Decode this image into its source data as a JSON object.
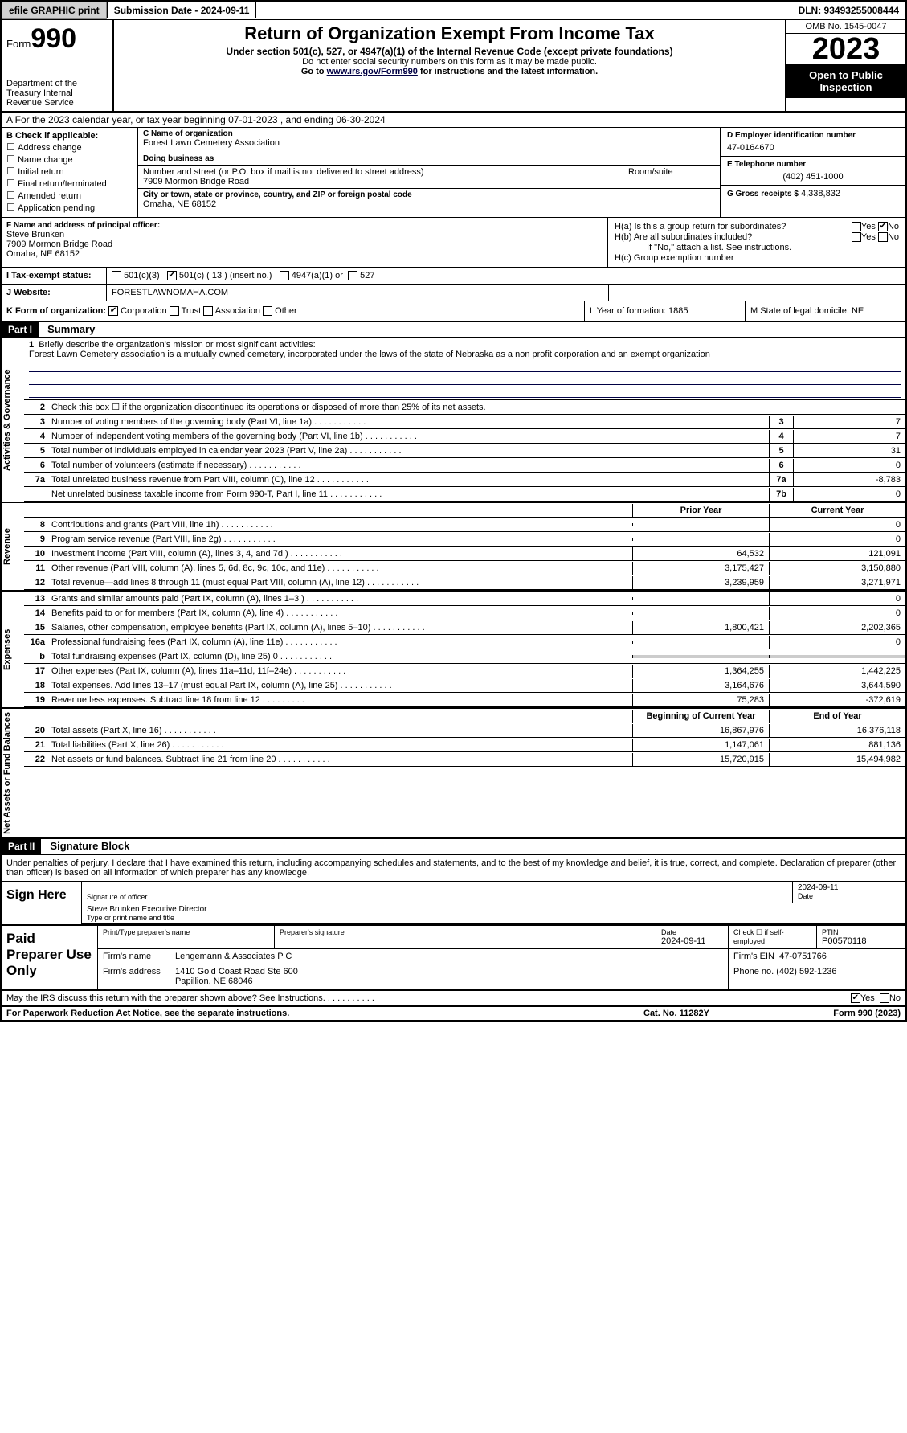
{
  "topbar": {
    "efile": "efile GRAPHIC print",
    "subdate": "Submission Date - 2024-09-11",
    "dln": "DLN: 93493255008444"
  },
  "header": {
    "form_label": "Form",
    "form_num": "990",
    "dept": "Department of the Treasury Internal Revenue Service",
    "title": "Return of Organization Exempt From Income Tax",
    "sub1": "Under section 501(c), 527, or 4947(a)(1) of the Internal Revenue Code (except private foundations)",
    "sub2": "Do not enter social security numbers on this form as it may be made public.",
    "sub3_pre": "Go to ",
    "sub3_link": "www.irs.gov/Form990",
    "sub3_post": " for instructions and the latest information.",
    "omb": "OMB No. 1545-0047",
    "year": "2023",
    "openpub": "Open to Public Inspection"
  },
  "period": {
    "line": "A For the 2023 calendar year, or tax year beginning 07-01-2023   , and ending 06-30-2024"
  },
  "colB": {
    "cap": "B Check if applicable:",
    "opts": [
      "Address change",
      "Name change",
      "Initial return",
      "Final return/terminated",
      "Amended return",
      "Application pending"
    ]
  },
  "colC": {
    "name_cap": "C Name of organization",
    "name": "Forest Lawn Cemetery Association",
    "dba_cap": "Doing business as",
    "dba": "",
    "addr_cap": "Number and street (or P.O. box if mail is not delivered to street address)",
    "addr": "7909 Mormon Bridge Road",
    "suite_cap": "Room/suite",
    "city_cap": "City or town, state or province, country, and ZIP or foreign postal code",
    "city": "Omaha, NE  68152"
  },
  "colD": {
    "ein_cap": "D Employer identification number",
    "ein": "47-0164670",
    "tel_cap": "E Telephone number",
    "tel": "(402) 451-1000",
    "gross_cap": "G Gross receipts $",
    "gross": "4,338,832"
  },
  "officer": {
    "cap": "F  Name and address of principal officer:",
    "name": "Steve Brunken",
    "addr1": "7909 Mormon Bridge Road",
    "addr2": "Omaha, NE  68152",
    "ha": "H(a)  Is this a group return for subordinates?",
    "hb": "H(b)  Are all subordinates included?",
    "hb_note": "If \"No,\" attach a list. See instructions.",
    "hc": "H(c)  Group exemption number"
  },
  "status": {
    "i_lab": "I  Tax-exempt status:",
    "c3": "501(c)(3)",
    "c": "501(c) ( 13 ) (insert no.)",
    "a1": "4947(a)(1) or",
    "s527": "527",
    "j_lab": "J  Website:",
    "website": "FORESTLAWNOMAHA.COM"
  },
  "korg": {
    "k": "K Form of organization:",
    "opts": [
      "Corporation",
      "Trust",
      "Association",
      "Other"
    ],
    "l": "L Year of formation: 1885",
    "m": "M State of legal domicile: NE"
  },
  "part1": {
    "hdr": "Part I",
    "title": "Summary",
    "q1": "Briefly describe the organization's mission or most significant activities:",
    "mission": "Forest Lawn Cemetery association is a mutually owned cemetery, incorporated under the laws of the state of Nebraska as a non profit corporation and an exempt organization",
    "q2": "Check this box ☐  if the organization discontinued its operations or disposed of more than 25% of its net assets."
  },
  "gov_lines": [
    {
      "n": "3",
      "t": "Number of voting members of the governing body (Part VI, line 1a)",
      "b": "3",
      "v": "7"
    },
    {
      "n": "4",
      "t": "Number of independent voting members of the governing body (Part VI, line 1b)",
      "b": "4",
      "v": "7"
    },
    {
      "n": "5",
      "t": "Total number of individuals employed in calendar year 2023 (Part V, line 2a)",
      "b": "5",
      "v": "31"
    },
    {
      "n": "6",
      "t": "Total number of volunteers (estimate if necessary)",
      "b": "6",
      "v": "0"
    },
    {
      "n": "7a",
      "t": "Total unrelated business revenue from Part VIII, column (C), line 12",
      "b": "7a",
      "v": "-8,783"
    },
    {
      "n": "",
      "t": "Net unrelated business taxable income from Form 990-T, Part I, line 11",
      "b": "7b",
      "v": "0"
    }
  ],
  "rev_hdr": {
    "py": "Prior Year",
    "cy": "Current Year"
  },
  "rev_lines": [
    {
      "n": "8",
      "t": "Contributions and grants (Part VIII, line 1h)",
      "py": "",
      "cy": "0"
    },
    {
      "n": "9",
      "t": "Program service revenue (Part VIII, line 2g)",
      "py": "",
      "cy": "0"
    },
    {
      "n": "10",
      "t": "Investment income (Part VIII, column (A), lines 3, 4, and 7d )",
      "py": "64,532",
      "cy": "121,091"
    },
    {
      "n": "11",
      "t": "Other revenue (Part VIII, column (A), lines 5, 6d, 8c, 9c, 10c, and 11e)",
      "py": "3,175,427",
      "cy": "3,150,880"
    },
    {
      "n": "12",
      "t": "Total revenue—add lines 8 through 11 (must equal Part VIII, column (A), line 12)",
      "py": "3,239,959",
      "cy": "3,271,971"
    }
  ],
  "exp_lines": [
    {
      "n": "13",
      "t": "Grants and similar amounts paid (Part IX, column (A), lines 1–3 )",
      "py": "",
      "cy": "0"
    },
    {
      "n": "14",
      "t": "Benefits paid to or for members (Part IX, column (A), line 4)",
      "py": "",
      "cy": "0"
    },
    {
      "n": "15",
      "t": "Salaries, other compensation, employee benefits (Part IX, column (A), lines 5–10)",
      "py": "1,800,421",
      "cy": "2,202,365"
    },
    {
      "n": "16a",
      "t": "Professional fundraising fees (Part IX, column (A), line 11e)",
      "py": "",
      "cy": "0"
    },
    {
      "n": "b",
      "t": "Total fundraising expenses (Part IX, column (D), line 25) 0",
      "py": "shade",
      "cy": "shade"
    },
    {
      "n": "17",
      "t": "Other expenses (Part IX, column (A), lines 11a–11d, 11f–24e)",
      "py": "1,364,255",
      "cy": "1,442,225"
    },
    {
      "n": "18",
      "t": "Total expenses. Add lines 13–17 (must equal Part IX, column (A), line 25)",
      "py": "3,164,676",
      "cy": "3,644,590"
    },
    {
      "n": "19",
      "t": "Revenue less expenses. Subtract line 18 from line 12",
      "py": "75,283",
      "cy": "-372,619"
    }
  ],
  "na_hdr": {
    "py": "Beginning of Current Year",
    "cy": "End of Year"
  },
  "na_lines": [
    {
      "n": "20",
      "t": "Total assets (Part X, line 16)",
      "py": "16,867,976",
      "cy": "16,376,118"
    },
    {
      "n": "21",
      "t": "Total liabilities (Part X, line 26)",
      "py": "1,147,061",
      "cy": "881,136"
    },
    {
      "n": "22",
      "t": "Net assets or fund balances. Subtract line 21 from line 20",
      "py": "15,720,915",
      "cy": "15,494,982"
    }
  ],
  "part2": {
    "hdr": "Part II",
    "title": "Signature Block"
  },
  "sig": {
    "intro": "Under penalties of perjury, I declare that I have examined this return, including accompanying schedules and statements, and to the best of my knowledge and belief, it is true, correct, and complete. Declaration of preparer (other than officer) is based on all information of which preparer has any knowledge.",
    "here": "Sign Here",
    "sig_cap": "Signature of officer",
    "officer": "Steve Brunken  Executive Director",
    "name_cap": "Type or print name and title",
    "date": "2024-09-11",
    "date_cap": "Date"
  },
  "prep": {
    "lab": "Paid Preparer Use Only",
    "name_cap": "Print/Type preparer's name",
    "sig_cap": "Preparer's signature",
    "date_cap": "Date",
    "date": "2024-09-11",
    "check_cap": "Check ☐ if self-employed",
    "ptin_cap": "PTIN",
    "ptin": "P00570118",
    "firm_cap": "Firm's name",
    "firm": "Lengemann & Associates P C",
    "ein_cap": "Firm's EIN",
    "ein": "47-0751766",
    "addr_cap": "Firm's address",
    "addr1": "1410 Gold Coast Road Ste 600",
    "addr2": "Papillion, NE  68046",
    "phone_cap": "Phone no.",
    "phone": "(402) 592-1236"
  },
  "discuss": {
    "q": "May the IRS discuss this return with the preparer shown above? See Instructions.",
    "yes": "Yes",
    "no": "No"
  },
  "footer": {
    "l": "For Paperwork Reduction Act Notice, see the separate instructions.",
    "m": "Cat. No. 11282Y",
    "r": "Form 990 (2023)"
  },
  "vlabels": {
    "gov": "Activities & Governance",
    "rev": "Revenue",
    "exp": "Expenses",
    "na": "Net Assets or Fund Balances"
  }
}
